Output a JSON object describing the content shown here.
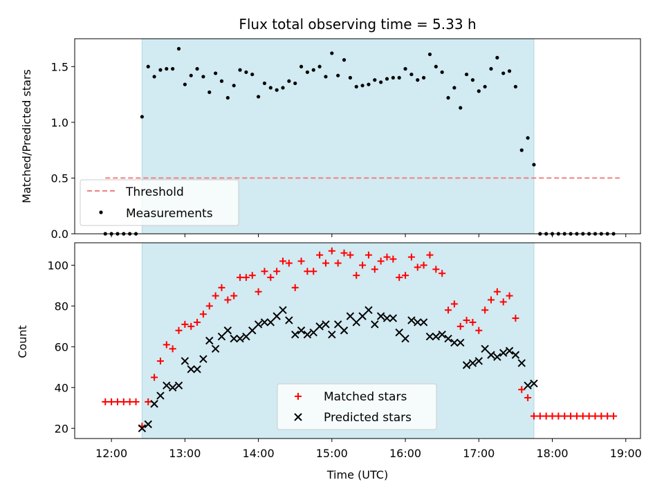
{
  "chart_data": [
    {
      "type": "scatter",
      "title": "Flux total observing time = 5.33 h",
      "ylabel": "Matched/Predicted stars",
      "xlabel": "",
      "x_ticks": [
        "12:00",
        "13:00",
        "14:00",
        "15:00",
        "16:00",
        "17:00",
        "18:00",
        "19:00"
      ],
      "ylim": [
        0,
        1.75
      ],
      "y_ticks": [
        "0.0",
        "0.5",
        "1.0",
        "1.5"
      ],
      "shaded_interval": [
        "12:25",
        "17:45"
      ],
      "shade_color": "#add8e6",
      "legend": {
        "placement": "lower-left",
        "entries": [
          "Threshold",
          "Measurements"
        ]
      },
      "threshold": {
        "name": "Threshold",
        "value": 0.5,
        "x_range": [
          "11:55",
          "18:55"
        ],
        "color": "#f08080"
      },
      "measurements": {
        "name": "Measurements",
        "color": "#000000",
        "x": [
          "11:55",
          "12:00",
          "12:05",
          "12:10",
          "12:15",
          "12:20",
          "12:25",
          "12:30",
          "12:35",
          "12:40",
          "12:45",
          "12:50",
          "12:55",
          "13:00",
          "13:05",
          "13:10",
          "13:15",
          "13:20",
          "13:25",
          "13:30",
          "13:35",
          "13:40",
          "13:45",
          "13:50",
          "13:55",
          "14:00",
          "14:05",
          "14:10",
          "14:15",
          "14:20",
          "14:25",
          "14:30",
          "14:35",
          "14:40",
          "14:45",
          "14:50",
          "14:55",
          "15:00",
          "15:05",
          "15:10",
          "15:15",
          "15:20",
          "15:25",
          "15:30",
          "15:35",
          "15:40",
          "15:45",
          "15:50",
          "15:55",
          "16:00",
          "16:05",
          "16:10",
          "16:15",
          "16:20",
          "16:25",
          "16:30",
          "16:35",
          "16:40",
          "16:45",
          "16:50",
          "16:55",
          "17:00",
          "17:05",
          "17:10",
          "17:15",
          "17:20",
          "17:25",
          "17:30",
          "17:35",
          "17:40",
          "17:45",
          "17:50",
          "17:55",
          "18:00",
          "18:05",
          "18:10",
          "18:15",
          "18:20",
          "18:25",
          "18:30",
          "18:35",
          "18:40",
          "18:45",
          "18:50"
        ],
        "y": [
          0,
          0,
          0,
          0,
          0,
          0,
          1.05,
          1.5,
          1.41,
          1.47,
          1.48,
          1.48,
          1.66,
          1.34,
          1.42,
          1.48,
          1.41,
          1.27,
          1.44,
          1.37,
          1.22,
          1.33,
          1.47,
          1.45,
          1.43,
          1.23,
          1.35,
          1.31,
          1.29,
          1.31,
          1.37,
          1.35,
          1.5,
          1.45,
          1.47,
          1.5,
          1.41,
          1.62,
          1.42,
          1.56,
          1.4,
          1.32,
          1.33,
          1.34,
          1.38,
          1.36,
          1.39,
          1.4,
          1.4,
          1.48,
          1.43,
          1.38,
          1.4,
          1.61,
          1.5,
          1.45,
          1.22,
          1.31,
          1.13,
          1.43,
          1.38,
          1.28,
          1.32,
          1.48,
          1.58,
          1.44,
          1.46,
          1.32,
          0.75,
          0.86,
          0.62,
          0,
          0,
          0,
          0,
          0,
          0,
          0,
          0,
          0,
          0,
          0,
          0,
          0
        ]
      }
    },
    {
      "type": "scatter",
      "title": "",
      "ylabel": "Count",
      "xlabel": "Time (UTC)",
      "x_ticks": [
        "12:00",
        "13:00",
        "14:00",
        "15:00",
        "16:00",
        "17:00",
        "18:00",
        "19:00"
      ],
      "ylim": [
        15,
        111
      ],
      "y_ticks": [
        "20",
        "40",
        "60",
        "80",
        "100"
      ],
      "shaded_interval": [
        "12:25",
        "17:45"
      ],
      "shade_color": "#add8e6",
      "legend": {
        "placement": "lower-center",
        "entries": [
          "Matched stars",
          "Predicted stars"
        ]
      },
      "series": [
        {
          "name": "Matched stars",
          "marker": "plus",
          "color": "#ff0000",
          "x": [
            "11:55",
            "12:00",
            "12:05",
            "12:10",
            "12:15",
            "12:20",
            "12:25",
            "12:30",
            "12:35",
            "12:40",
            "12:45",
            "12:50",
            "12:55",
            "13:00",
            "13:05",
            "13:10",
            "13:15",
            "13:20",
            "13:25",
            "13:30",
            "13:35",
            "13:40",
            "13:45",
            "13:50",
            "13:55",
            "14:00",
            "14:05",
            "14:10",
            "14:15",
            "14:20",
            "14:25",
            "14:30",
            "14:35",
            "14:40",
            "14:45",
            "14:50",
            "14:55",
            "15:00",
            "15:05",
            "15:10",
            "15:15",
            "15:20",
            "15:25",
            "15:30",
            "15:35",
            "15:40",
            "15:45",
            "15:50",
            "15:55",
            "16:00",
            "16:05",
            "16:10",
            "16:15",
            "16:20",
            "16:25",
            "16:30",
            "16:35",
            "16:40",
            "16:45",
            "16:50",
            "16:55",
            "17:00",
            "17:05",
            "17:10",
            "17:15",
            "17:20",
            "17:25",
            "17:30",
            "17:35",
            "17:40",
            "17:45",
            "17:50",
            "17:55",
            "18:00",
            "18:05",
            "18:10",
            "18:15",
            "18:20",
            "18:25",
            "18:30",
            "18:35",
            "18:40",
            "18:45",
            "18:50"
          ],
          "y": [
            33,
            33,
            33,
            33,
            33,
            33,
            21,
            33,
            45,
            53,
            61,
            59,
            68,
            71,
            70,
            72,
            76,
            80,
            85,
            89,
            83,
            85,
            94,
            94,
            95,
            87,
            97,
            94,
            97,
            102,
            101,
            89,
            102,
            97,
            97,
            105,
            101,
            107,
            101,
            106,
            105,
            95,
            100,
            105,
            98,
            102,
            104,
            103,
            94,
            95,
            104,
            99,
            100,
            105,
            98,
            96,
            78,
            81,
            70,
            73,
            72,
            68,
            78,
            83,
            87,
            82,
            85,
            74,
            39,
            35,
            26,
            26,
            26,
            26,
            26,
            26,
            26,
            26,
            26,
            26,
            26,
            26,
            26,
            26
          ]
        },
        {
          "name": "Predicted stars",
          "marker": "x",
          "color": "#000000",
          "x": [
            "12:25",
            "12:30",
            "12:35",
            "12:40",
            "12:45",
            "12:50",
            "12:55",
            "13:00",
            "13:05",
            "13:10",
            "13:15",
            "13:20",
            "13:25",
            "13:30",
            "13:35",
            "13:40",
            "13:45",
            "13:50",
            "13:55",
            "14:00",
            "14:05",
            "14:10",
            "14:15",
            "14:20",
            "14:25",
            "14:30",
            "14:35",
            "14:40",
            "14:45",
            "14:50",
            "14:55",
            "15:00",
            "15:05",
            "15:10",
            "15:15",
            "15:20",
            "15:25",
            "15:30",
            "15:35",
            "15:40",
            "15:45",
            "15:50",
            "15:55",
            "16:00",
            "16:05",
            "16:10",
            "16:15",
            "16:20",
            "16:25",
            "16:30",
            "16:35",
            "16:40",
            "16:45",
            "16:50",
            "16:55",
            "17:00",
            "17:05",
            "17:10",
            "17:15",
            "17:20",
            "17:25",
            "17:30",
            "17:35",
            "17:40",
            "17:45"
          ],
          "y": [
            20,
            22,
            32,
            36,
            41,
            40,
            41,
            53,
            49,
            49,
            54,
            63,
            59,
            65,
            68,
            64,
            64,
            65,
            68,
            71,
            72,
            72,
            75,
            78,
            73,
            66,
            68,
            66,
            67,
            70,
            71,
            66,
            71,
            68,
            75,
            72,
            75,
            78,
            71,
            75,
            74,
            74,
            67,
            64,
            73,
            72,
            72,
            65,
            65,
            66,
            64,
            62,
            62,
            51,
            52,
            53,
            59,
            56,
            55,
            57,
            58,
            56,
            52,
            41,
            42
          ]
        }
      ]
    }
  ]
}
